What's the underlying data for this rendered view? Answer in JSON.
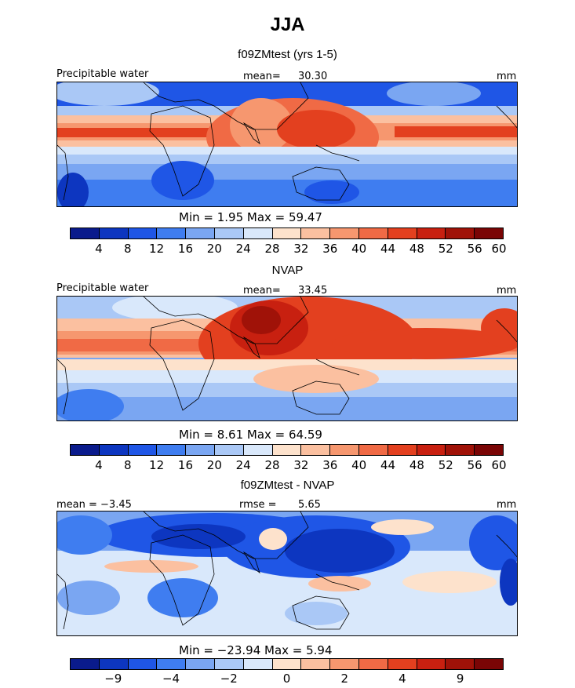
{
  "main_title": "JJA",
  "panels": [
    {
      "title": "f09ZMtest (yrs 1-5)",
      "left_label": "Precipitable water",
      "mid_label": "mean=",
      "mid_value": "30.30",
      "right_label": "mm",
      "minmax_text": "Min =    1.95  Max =    59.47",
      "colors": [
        "#0a1b8c",
        "#0d36c0",
        "#1f56e6",
        "#3f7df0",
        "#7aa6f2",
        "#aac8f6",
        "#d9e8fb",
        "#fde2cc",
        "#fbc0a0",
        "#f6976f",
        "#f06a45",
        "#e3401f",
        "#c82010",
        "#a01208",
        "#7a0505"
      ],
      "ticks": [
        "4",
        "8",
        "12",
        "16",
        "20",
        "24",
        "28",
        "32",
        "36",
        "40",
        "44",
        "48",
        "52",
        "56",
        "60"
      ]
    },
    {
      "title": "NVAP",
      "left_label": "Precipitable water",
      "mid_label": "mean=",
      "mid_value": "33.45",
      "right_label": "mm",
      "minmax_text": "Min =    8.61  Max =    64.59",
      "colors": [
        "#0a1b8c",
        "#0d36c0",
        "#1f56e6",
        "#3f7df0",
        "#7aa6f2",
        "#aac8f6",
        "#d9e8fb",
        "#fde2cc",
        "#fbc0a0",
        "#f6976f",
        "#f06a45",
        "#e3401f",
        "#c82010",
        "#a01208",
        "#7a0505"
      ],
      "ticks": [
        "4",
        "8",
        "12",
        "16",
        "20",
        "24",
        "28",
        "32",
        "36",
        "40",
        "44",
        "48",
        "52",
        "56",
        "60"
      ]
    },
    {
      "title": "f09ZMtest - NVAP",
      "left_label": "mean =   −3.45",
      "mid_label": "rmse =",
      "mid_value": "5.65",
      "right_label": "mm",
      "minmax_text": "Min = −23.94  Max =     5.94",
      "colors": [
        "#0a1b8c",
        "#0d36c0",
        "#1f56e6",
        "#3f7df0",
        "#7aa6f2",
        "#aac8f6",
        "#d9e8fb",
        "#fde2cc",
        "#fbc0a0",
        "#f6976f",
        "#f06a45",
        "#e3401f",
        "#c82010",
        "#a01208",
        "#7a0505"
      ],
      "ticks": [
        "−9",
        "−4",
        "−2",
        "0",
        "2",
        "4",
        "9"
      ]
    }
  ]
}
